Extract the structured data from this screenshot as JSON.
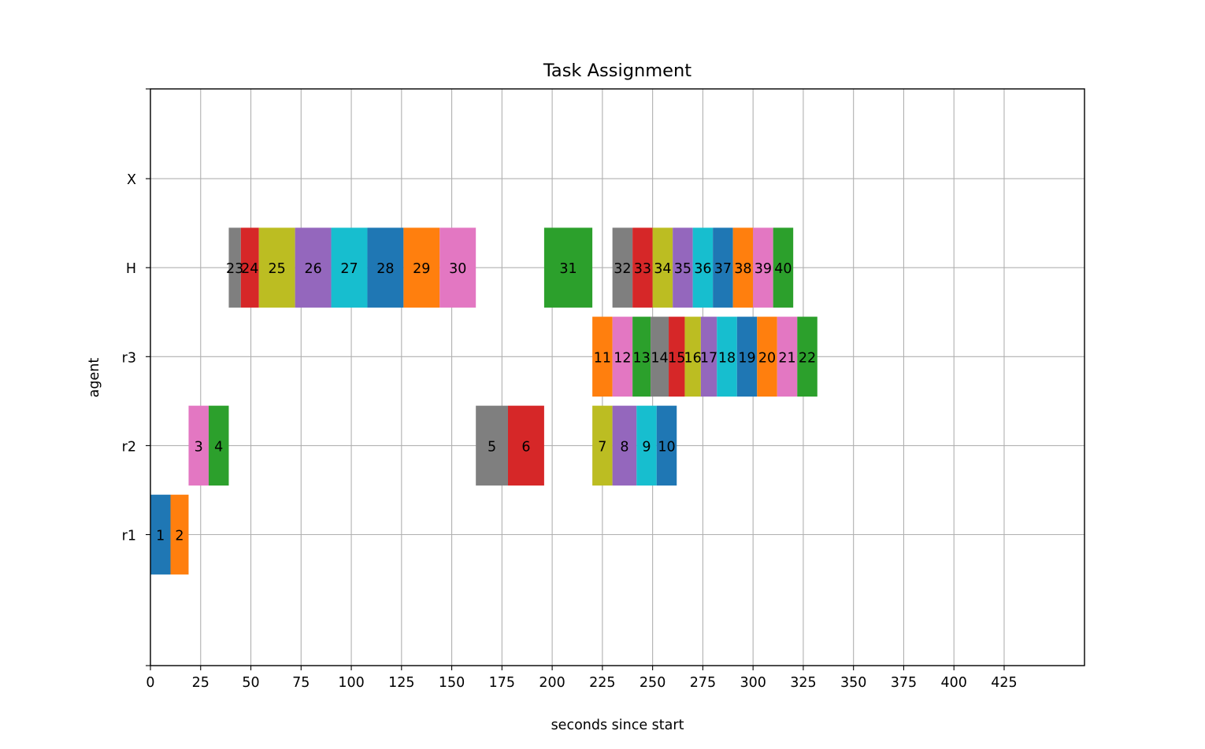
{
  "chart_data": {
    "type": "gantt",
    "title": "Task Assignment",
    "xlabel": "seconds since start",
    "ylabel": "agent",
    "xlim": [
      0,
      465
    ],
    "xticks": [
      0,
      25,
      50,
      75,
      100,
      125,
      150,
      175,
      200,
      225,
      250,
      275,
      300,
      325,
      350,
      375,
      400,
      425
    ],
    "agents": [
      "r1",
      "r2",
      "r3",
      "H",
      "X"
    ],
    "grid": true,
    "palette": [
      "#1f77b4",
      "#ff7f0e",
      "#2ca02c",
      "#d62728",
      "#9467bd",
      "#8c564b",
      "#e377c2",
      "#7f7f7f",
      "#bcbd22",
      "#17becf"
    ],
    "tasks": [
      {
        "id": "1",
        "agent": "r1",
        "start": 0,
        "end": 10,
        "color": "#1f77b4"
      },
      {
        "id": "2",
        "agent": "r1",
        "start": 10,
        "end": 19,
        "color": "#ff7f0e"
      },
      {
        "id": "3",
        "agent": "r2",
        "start": 19,
        "end": 29,
        "color": "#e377c2"
      },
      {
        "id": "4",
        "agent": "r2",
        "start": 29,
        "end": 39,
        "color": "#2ca02c"
      },
      {
        "id": "5",
        "agent": "r2",
        "start": 162,
        "end": 178,
        "color": "#7f7f7f"
      },
      {
        "id": "6",
        "agent": "r2",
        "start": 178,
        "end": 196,
        "color": "#d62728"
      },
      {
        "id": "7",
        "agent": "r2",
        "start": 220,
        "end": 230,
        "color": "#bcbd22"
      },
      {
        "id": "8",
        "agent": "r2",
        "start": 230,
        "end": 242,
        "color": "#9467bd"
      },
      {
        "id": "9",
        "agent": "r2",
        "start": 242,
        "end": 252,
        "color": "#17becf"
      },
      {
        "id": "10",
        "agent": "r2",
        "start": 252,
        "end": 262,
        "color": "#1f77b4"
      },
      {
        "id": "11",
        "agent": "r3",
        "start": 220,
        "end": 230,
        "color": "#ff7f0e"
      },
      {
        "id": "12",
        "agent": "r3",
        "start": 230,
        "end": 240,
        "color": "#e377c2"
      },
      {
        "id": "13",
        "agent": "r3",
        "start": 240,
        "end": 249,
        "color": "#2ca02c"
      },
      {
        "id": "14",
        "agent": "r3",
        "start": 249,
        "end": 258,
        "color": "#7f7f7f"
      },
      {
        "id": "15",
        "agent": "r3",
        "start": 258,
        "end": 266,
        "color": "#d62728"
      },
      {
        "id": "16",
        "agent": "r3",
        "start": 266,
        "end": 274,
        "color": "#bcbd22"
      },
      {
        "id": "17",
        "agent": "r3",
        "start": 274,
        "end": 282,
        "color": "#9467bd"
      },
      {
        "id": "18",
        "agent": "r3",
        "start": 282,
        "end": 292,
        "color": "#17becf"
      },
      {
        "id": "19",
        "agent": "r3",
        "start": 292,
        "end": 302,
        "color": "#1f77b4"
      },
      {
        "id": "20",
        "agent": "r3",
        "start": 302,
        "end": 312,
        "color": "#ff7f0e"
      },
      {
        "id": "21",
        "agent": "r3",
        "start": 312,
        "end": 322,
        "color": "#e377c2"
      },
      {
        "id": "22",
        "agent": "r3",
        "start": 322,
        "end": 332,
        "color": "#2ca02c"
      },
      {
        "id": "23",
        "agent": "H",
        "start": 39,
        "end": 45,
        "color": "#7f7f7f"
      },
      {
        "id": "24",
        "agent": "H",
        "start": 45,
        "end": 54,
        "color": "#d62728"
      },
      {
        "id": "25",
        "agent": "H",
        "start": 54,
        "end": 72,
        "color": "#bcbd22"
      },
      {
        "id": "26",
        "agent": "H",
        "start": 72,
        "end": 90,
        "color": "#9467bd"
      },
      {
        "id": "27",
        "agent": "H",
        "start": 90,
        "end": 108,
        "color": "#17becf"
      },
      {
        "id": "28",
        "agent": "H",
        "start": 108,
        "end": 126,
        "color": "#1f77b4"
      },
      {
        "id": "29",
        "agent": "H",
        "start": 126,
        "end": 144,
        "color": "#ff7f0e"
      },
      {
        "id": "30",
        "agent": "H",
        "start": 144,
        "end": 162,
        "color": "#e377c2"
      },
      {
        "id": "31",
        "agent": "H",
        "start": 196,
        "end": 220,
        "color": "#2ca02c"
      },
      {
        "id": "32",
        "agent": "H",
        "start": 230,
        "end": 240,
        "color": "#7f7f7f"
      },
      {
        "id": "33",
        "agent": "H",
        "start": 240,
        "end": 250,
        "color": "#d62728"
      },
      {
        "id": "34",
        "agent": "H",
        "start": 250,
        "end": 260,
        "color": "#bcbd22"
      },
      {
        "id": "35",
        "agent": "H",
        "start": 260,
        "end": 270,
        "color": "#9467bd"
      },
      {
        "id": "36",
        "agent": "H",
        "start": 270,
        "end": 280,
        "color": "#17becf"
      },
      {
        "id": "37",
        "agent": "H",
        "start": 280,
        "end": 290,
        "color": "#1f77b4"
      },
      {
        "id": "38",
        "agent": "H",
        "start": 290,
        "end": 300,
        "color": "#ff7f0e"
      },
      {
        "id": "39",
        "agent": "H",
        "start": 300,
        "end": 310,
        "color": "#e377c2"
      },
      {
        "id": "40",
        "agent": "H",
        "start": 310,
        "end": 320,
        "color": "#2ca02c"
      }
    ]
  }
}
